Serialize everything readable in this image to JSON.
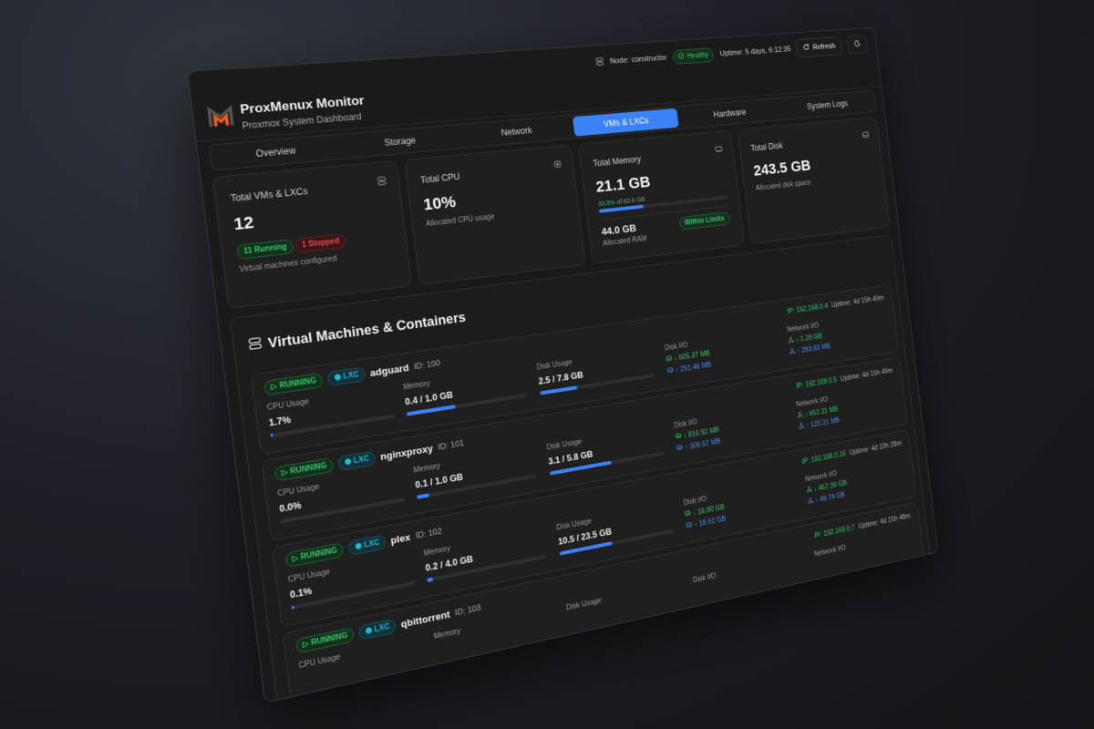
{
  "header": {
    "title": "ProxMenux Monitor",
    "subtitle": "Proxmox System Dashboard",
    "node": "Node: constructor",
    "health": "Healthy",
    "uptime": "Uptime: 5 days, 6:12:35",
    "refresh_label": "Refresh"
  },
  "tabs": [
    "Overview",
    "Storage",
    "Network",
    "VMs & LXCs",
    "Hardware",
    "System Logs"
  ],
  "active_tab": "VMs & LXCs",
  "stats": {
    "vms": {
      "title": "Total VMs & LXCs",
      "value": "12",
      "running": "11 Running",
      "stopped": "1 Stopped",
      "sub": "Virtual machines configured"
    },
    "cpu": {
      "title": "Total CPU",
      "value": "10%",
      "sub": "Allocated CPU usage"
    },
    "memory": {
      "title": "Total Memory",
      "value": "21.1 GB",
      "percent_text": "33.8%",
      "of_text": " of 62.6 GB",
      "percent": 33.8,
      "allocated": "44.0 GB",
      "allocated_label": "Allocated RAM",
      "status": "Within Limits"
    },
    "disk": {
      "title": "Total Disk",
      "value": "243.5 GB",
      "sub": "Allocated disk space"
    }
  },
  "section_title": "Virtual Machines & Containers",
  "labels": {
    "cpu": "CPU Usage",
    "memory": "Memory",
    "disk": "Disk Usage",
    "disk_io": "Disk I/O",
    "net_io": "Network I/O",
    "uptime_prefix": "Uptime: "
  },
  "vms": [
    {
      "status": "RUNNING",
      "type": "LXC",
      "name": "adguard",
      "id": "ID: 100",
      "ip": "IP: 192.168.0.4",
      "uptime": "4d 15h 49m",
      "cpu": "1.7%",
      "cpu_pct": 1.7,
      "memory": "0.4 / 1.0 GB",
      "mem_pct": 40,
      "disk": "2.5 / 7.8 GB",
      "disk_pct": 32,
      "disk_read": "↓ 605.37 MB",
      "disk_write": "↑ 291.46 MB",
      "net_in": "↓ 1.28 GB",
      "net_out": "↑ 283.93 MB"
    },
    {
      "status": "RUNNING",
      "type": "LXC",
      "name": "nginxproxy",
      "id": "ID: 101",
      "ip": "IP: 192.168.0.5",
      "uptime": "4d 15h 49m",
      "cpu": "0.0%",
      "cpu_pct": 0,
      "memory": "0.1 / 1.0 GB",
      "mem_pct": 10,
      "disk": "3.1 / 5.8 GB",
      "disk_pct": 53,
      "disk_read": "↓ 816.92 MB",
      "disk_write": "↑ 306.67 MB",
      "net_in": "↓ 662.31 MB",
      "net_out": "↑ 120.31 MB"
    },
    {
      "status": "RUNNING",
      "type": "LXC",
      "name": "plex",
      "id": "ID: 102",
      "ip": "IP: 192.168.0.16",
      "uptime": "4d 10h 28m",
      "cpu": "0.1%",
      "cpu_pct": 0.1,
      "memory": "0.2 / 4.0 GB",
      "mem_pct": 5,
      "disk": "10.5 / 23.5 GB",
      "disk_pct": 45,
      "disk_read": "↓ 16.90 GB",
      "disk_write": "↑ 18.52 GB",
      "net_in": "↓ 467.39 GB",
      "net_out": "↑ 48.74 GB"
    },
    {
      "status": "RUNNING",
      "type": "LXC",
      "name": "qbittorrent",
      "id": "ID: 103",
      "ip": "IP: 192.168.0.7",
      "uptime": "4d 15h 48m"
    }
  ],
  "colors": {
    "accent": "#3b82f6",
    "running": "#39c36a",
    "stopped": "#e5484d",
    "lxc": "#22b8cf",
    "upload": "#4a8cf7"
  }
}
